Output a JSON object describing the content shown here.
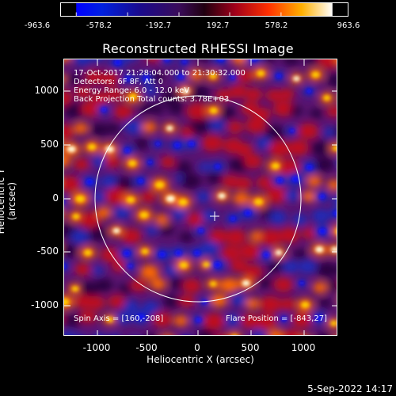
{
  "colorbar": {
    "tick_labels": [
      "-963.6",
      "-578.2",
      "-192.7",
      "192.7",
      "578.2",
      "963.6"
    ],
    "min": -963.6,
    "max": 963.6
  },
  "title": "Reconstructed RHESSI Image",
  "annotations": {
    "line1": "17-Oct-2017 21:28:04.000 to 21:30:32.000",
    "line2": "Detectors: 6F 8F, Att 0",
    "line3": "Energy Range: 6.0 - 12.0 keV",
    "line4": "Back Projection   Total counts: 3.78E+03",
    "spin_axis": "Spin Axis = [160,-208]",
    "flare_position": "Flare Position = [-843,27]"
  },
  "axes": {
    "xlabel": "Heliocentric X (arcsec)",
    "ylabel": "Heliocentric Y (arcsec)",
    "xticks": [
      "-1000",
      "-500",
      "0",
      "500",
      "1000"
    ],
    "yticks": [
      "1000",
      "500",
      "0",
      "-500",
      "-1000"
    ],
    "xlim": [
      -1300,
      1300
    ],
    "ylim": [
      -1300,
      1300
    ]
  },
  "footer": {
    "timestamp": "5-Sep-2022 14:17"
  },
  "colors": {
    "background": "#000000",
    "foreground": "#ffffff"
  }
}
